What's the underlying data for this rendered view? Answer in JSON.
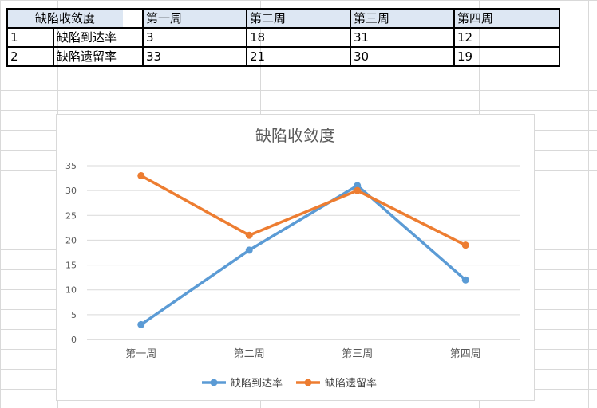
{
  "table": {
    "headers": [
      "",
      "缺陷收敛度",
      "第一周",
      "第二周",
      "第三周",
      "第四周"
    ],
    "rows": [
      [
        "1",
        "缺陷到达率",
        "3",
        "18",
        "31",
        "12"
      ],
      [
        "2",
        "缺陷遗留率",
        "33",
        "21",
        "30",
        "19"
      ]
    ]
  },
  "chart_data": {
    "type": "line",
    "title": "缺陷收敛度",
    "categories": [
      "第一周",
      "第二周",
      "第三周",
      "第四周"
    ],
    "y_ticks": [
      "0",
      "5",
      "10",
      "15",
      "20",
      "25",
      "30",
      "35"
    ],
    "ylim": [
      0,
      35
    ],
    "grid": true,
    "legend_position": "bottom",
    "series": [
      {
        "name": "缺陷到达率",
        "values": [
          3,
          18,
          31,
          12
        ],
        "color": "#5b9bd5"
      },
      {
        "name": "缺陷遗留率",
        "values": [
          33,
          21,
          30,
          19
        ],
        "color": "#ed7d31"
      }
    ]
  }
}
